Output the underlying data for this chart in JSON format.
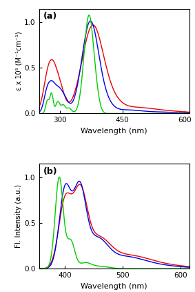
{
  "panel_a": {
    "title": "(a)",
    "xlabel": "Wavelength (nm)",
    "ylabel": "ε x 10⁵ (M⁻¹cm⁻¹)",
    "xlim": [
      250,
      610
    ],
    "ylim": [
      0,
      1.15
    ],
    "xticks": [
      300,
      450,
      600
    ],
    "yticks": [
      0.0,
      0.5,
      1.0
    ],
    "colors": {
      "green": "#00CC00",
      "blue": "#0000EE",
      "red": "#EE0000"
    }
  },
  "panel_b": {
    "title": "(b)",
    "xlabel": "Wavelength (nm)",
    "ylabel": "Fl. Intensity (a.u.)",
    "xlim": [
      355,
      615
    ],
    "ylim": [
      0,
      1.15
    ],
    "xticks": [
      400,
      500,
      600
    ],
    "yticks": [
      0.0,
      0.5,
      1.0
    ],
    "colors": {
      "green": "#00CC00",
      "blue": "#0000EE",
      "red": "#EE0000"
    }
  }
}
